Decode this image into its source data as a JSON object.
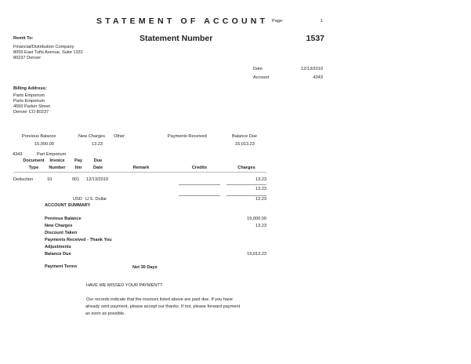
{
  "title": "STATEMENT OF ACCOUNT",
  "page": {
    "label": "Page:",
    "value": "1"
  },
  "statement": {
    "label": "Statement Number",
    "value": "1537"
  },
  "remit": {
    "label": "Remit To:",
    "lines": [
      "Financial/Distribution Company",
      "8055 East Tufts Avenue, Suite 1331",
      "80237 Denver"
    ]
  },
  "info": {
    "date_label": "Date",
    "date": "12/13/2010",
    "account_label": "Account",
    "account": "4343"
  },
  "billing": {
    "label": "Billing Address:",
    "lines": [
      "Parts Emporium",
      "Parts Emporium",
      "4550 Parker Street",
      "Denver CO 80237"
    ]
  },
  "totals": {
    "previous_balance_label": "Previous Balance",
    "previous_balance": "15,000.00",
    "new_charges_label": "New Charges",
    "new_charges": "13.23",
    "other_label": "Other",
    "payments_label": "Payments Received",
    "balance_due_label": "Balance Due",
    "balance_due": "15,013.23"
  },
  "customer": {
    "id": "4343",
    "name": "Part Emporium"
  },
  "table": {
    "headers": [
      [
        "Document",
        "Type"
      ],
      [
        "Invoice",
        "Number"
      ],
      [
        "Pay",
        "Itm"
      ],
      [
        "Due",
        "Date"
      ],
      [
        "",
        "Remark"
      ],
      [
        "",
        "Credits"
      ],
      [
        "",
        "Charges"
      ]
    ],
    "rows": [
      {
        "type": "Deduction",
        "invoice": "10",
        "item": "001",
        "due": "12/13/2010",
        "remark": "",
        "credits": "",
        "charges": "13.23"
      }
    ],
    "subtotal": "13.23",
    "currency_code": "USD",
    "currency_name": "U.S. Dollar",
    "total": "13.23"
  },
  "summary": {
    "heading": "ACCOUNT SUMMARY",
    "rows": [
      {
        "label": "Previous Balance",
        "value": "15,000.00"
      },
      {
        "label": "New Charges",
        "value": "13.23"
      },
      {
        "label": "Discount Taken",
        "value": ""
      },
      {
        "label": "Payments Received - Thank You",
        "value": ""
      },
      {
        "label": "Adjustments",
        "value": ""
      },
      {
        "label": "Balance Due",
        "value": "15,013.23"
      }
    ],
    "terms_label": "Payment Terms",
    "terms": "Net 30 Days"
  },
  "notice": {
    "heading": "HAVE WE MISSED YOUR PAYMENT?",
    "lines": [
      "Our records indicate that the invoices listed above are past due.  If you have",
      "already sent payment, please accept our thanks.  If not, please forward payment",
      "as soon as possible."
    ]
  }
}
